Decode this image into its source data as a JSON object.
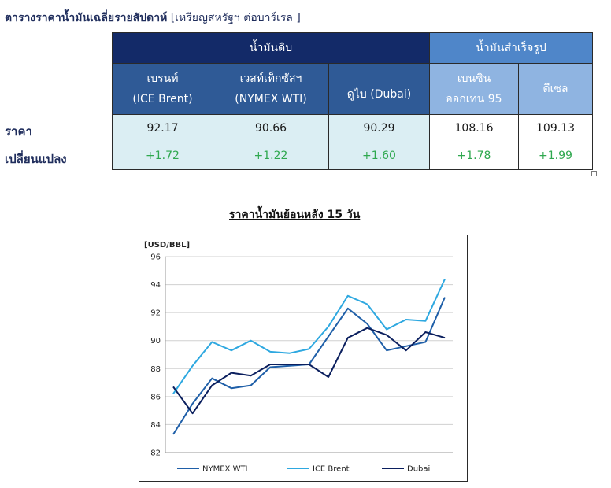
{
  "header": {
    "title_bold": "ตารางราคาน้ำมันเฉลี่ยรายสัปดาห์",
    "title_unit": "[เหรียญสหรัฐฯ ต่อบาร์เรล ]"
  },
  "table": {
    "group_crude": "น้ำมันดิบ",
    "group_refined": "น้ำมันสำเร็จรูป",
    "columns": [
      {
        "line1": "เบรนท์",
        "line2": "(ICE Brent)"
      },
      {
        "line1": "เวสท์เท็กซัสฯ",
        "line2": "(NYMEX WTI)"
      },
      {
        "line1": "ดูไบ (Dubai)",
        "line2": ""
      },
      {
        "line1": "เบนซิน",
        "line2": "ออกเทน  95"
      },
      {
        "line1": "ดีเซล",
        "line2": ""
      }
    ],
    "row_price_label": "ราคา",
    "row_change_label": "เปลี่ยนแปลง",
    "prices": [
      "92.17",
      "90.66",
      "90.29",
      "108.16",
      "109.13"
    ],
    "changes": [
      "+1.72",
      "+1.22",
      "+1.60",
      "+1.78",
      "+1.99"
    ],
    "change_color": "#2fa84f",
    "crude_header_color": "#132a68",
    "refined_header_color": "#4f86c9"
  },
  "chart_title": "ราคาน้ำมันย้อนหลัง 15 วัน",
  "chart_data": {
    "type": "line",
    "ylabel": "[USD/BBL]",
    "ylim": [
      82,
      96
    ],
    "yticks": [
      82,
      84,
      86,
      88,
      90,
      92,
      94,
      96
    ],
    "grid": true,
    "legend_position": "bottom",
    "series": [
      {
        "name": "NYMEX WTI",
        "color": "#1f5fa8",
        "values": [
          83.3,
          85.5,
          87.3,
          86.6,
          86.8,
          88.1,
          88.2,
          88.3,
          90.3,
          92.3,
          91.2,
          89.3,
          89.6,
          89.9,
          93.1
        ]
      },
      {
        "name": "ICE Brent",
        "color": "#2ea8e0",
        "values": [
          86.2,
          88.2,
          89.9,
          89.3,
          90.0,
          89.2,
          89.1,
          89.4,
          91.0,
          93.2,
          92.6,
          90.8,
          91.5,
          91.4,
          94.4
        ]
      },
      {
        "name": "Dubai",
        "color": "#0b1f5e",
        "values": [
          86.7,
          84.8,
          86.8,
          87.7,
          87.5,
          88.3,
          88.3,
          88.3,
          87.4,
          90.2,
          90.9,
          90.4,
          89.3,
          90.6,
          90.2
        ]
      }
    ]
  }
}
